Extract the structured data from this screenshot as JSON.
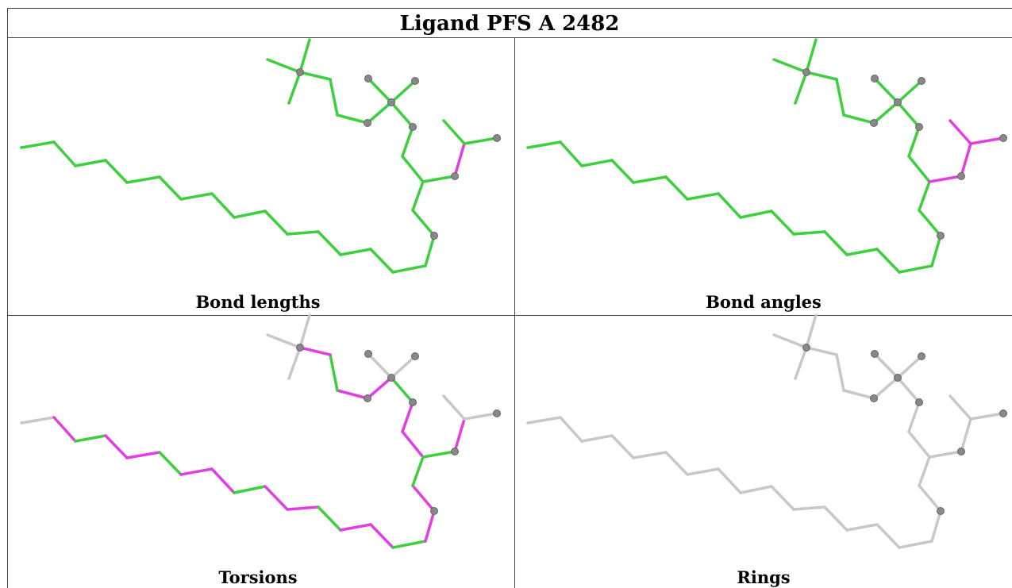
{
  "title": "Ligand PFS A 2482",
  "panels": [
    {
      "label": "Bond lengths"
    },
    {
      "label": "Bond angles"
    },
    {
      "label": "Torsions"
    },
    {
      "label": "Rings"
    }
  ]
}
